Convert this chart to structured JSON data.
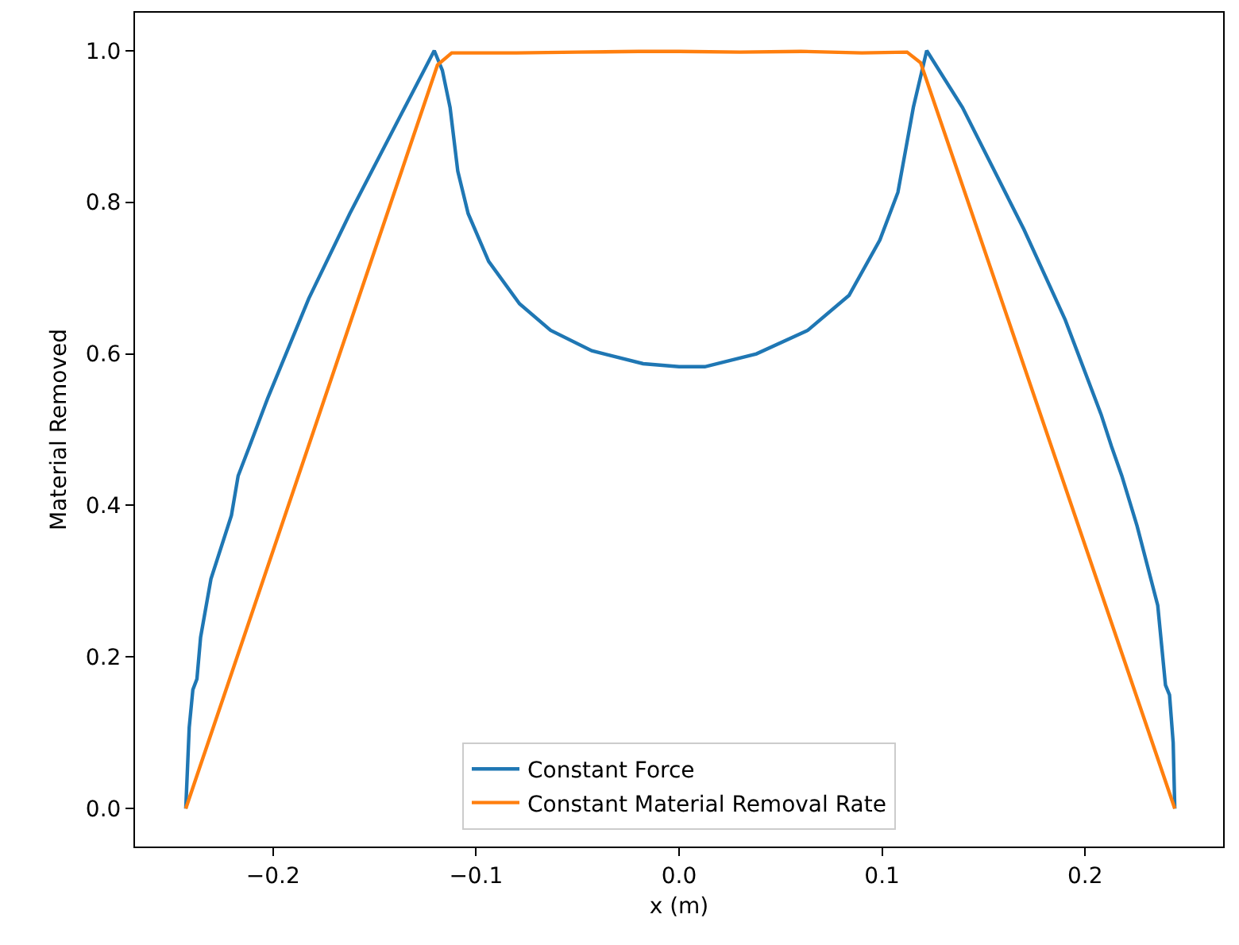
{
  "chart_data": {
    "type": "line",
    "xlabel": "x (m)",
    "ylabel": "Material Removed",
    "xlim": [
      -0.268,
      0.268
    ],
    "xticks": [
      {
        "value": -0.2,
        "label": "−0.2"
      },
      {
        "value": -0.1,
        "label": "−0.1"
      },
      {
        "value": 0,
        "label": "0.0"
      },
      0.1,
      0.2
    ],
    "ylim": [
      -0.05,
      1.05
    ],
    "yticks": [
      {
        "value": 0,
        "label": "0.0"
      },
      0.2,
      0.4,
      0.6,
      0.8,
      {
        "value": 1,
        "label": "1.0"
      }
    ],
    "legend": "bottom",
    "marker": "none",
    "line_style": "solid",
    "series": [
      {
        "name": "Constant Force",
        "color": "#1f77b4",
        "x": [
          -0.243,
          -0.2413,
          -0.2395,
          -0.2375,
          -0.2357,
          -0.2306,
          -0.2205,
          -0.2172,
          -0.2116,
          -0.2027,
          -0.1824,
          -0.1622,
          -0.1419,
          -0.1206,
          -0.1166,
          -0.1128,
          -0.109,
          -0.1039,
          -0.0938,
          -0.0786,
          -0.0633,
          -0.043,
          -0.0177,
          0.0,
          0.0127,
          0.0381,
          0.0634,
          0.0837,
          0.0989,
          0.1078,
          0.1116,
          0.1154,
          0.122,
          0.1396,
          0.1699,
          0.1902,
          0.2079,
          0.213,
          0.2181,
          0.2256,
          0.2358,
          0.2396,
          0.2416,
          0.2434,
          0.2442
        ],
        "values": [
          0.0,
          0.107,
          0.157,
          0.171,
          0.226,
          0.303,
          0.387,
          0.439,
          0.478,
          0.541,
          0.673,
          0.785,
          0.89,
          1.0,
          0.974,
          0.925,
          0.841,
          0.785,
          0.722,
          0.666,
          0.631,
          0.604,
          0.587,
          0.583,
          0.583,
          0.6,
          0.631,
          0.677,
          0.75,
          0.813,
          0.869,
          0.925,
          1.0,
          0.925,
          0.764,
          0.645,
          0.52,
          0.478,
          0.439,
          0.373,
          0.268,
          0.163,
          0.15,
          0.087,
          0.0
        ]
      },
      {
        "name": "Constant Material Removal Rate",
        "color": "#ff7f0e",
        "x": [
          -0.243,
          -0.119,
          -0.112,
          -0.08,
          -0.05,
          -0.02,
          0.0,
          0.03,
          0.06,
          0.09,
          0.1123,
          0.119,
          0.2442
        ],
        "values": [
          0.0,
          0.981,
          0.997,
          0.997,
          0.998,
          0.999,
          0.999,
          0.998,
          0.999,
          0.997,
          0.998,
          0.984,
          0.0
        ]
      }
    ]
  }
}
